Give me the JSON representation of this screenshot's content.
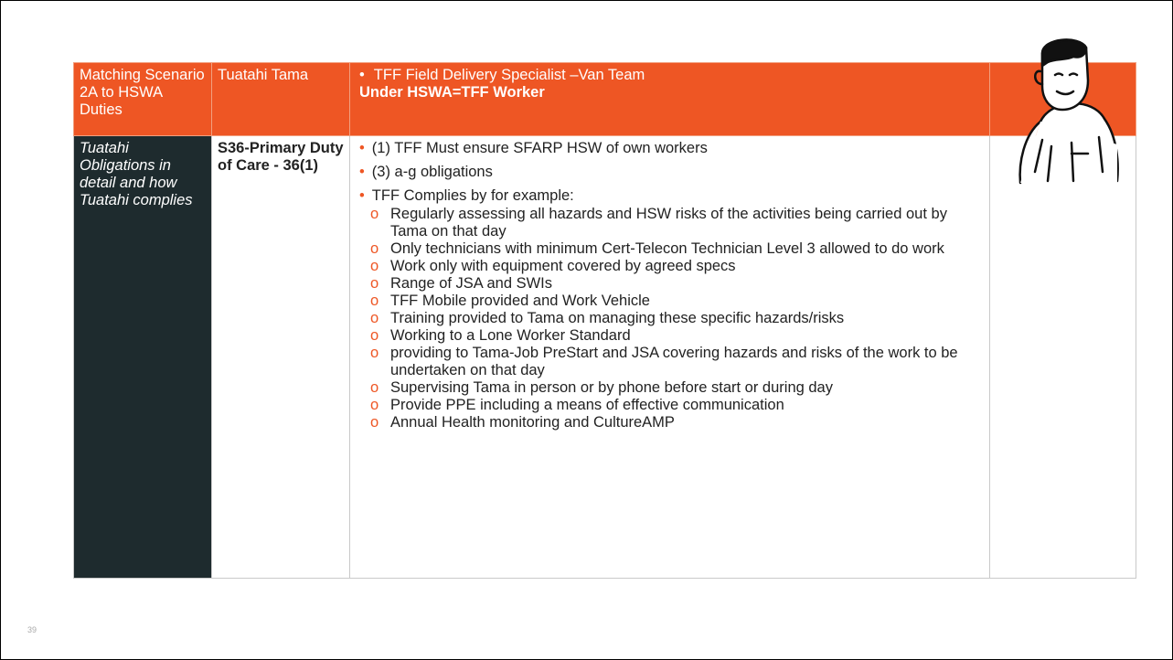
{
  "table": {
    "header": {
      "scenario": "Matching Scenario 2A  to HSWA Duties",
      "party": "Tuatahi Tama",
      "role": "TFF Field Delivery Specialist –Van Team",
      "role_status": "Under HSWA=TFF Worker"
    },
    "row": {
      "topic": "Tuatahi Obligations in detail and how Tuatahi complies",
      "duty": "S36-Primary Duty of Care - 36(1)",
      "points": [
        "(1) TFF Must ensure SFARP HSW of own workers",
        "(3) a-g obligations",
        "TFF Complies by for example:"
      ],
      "examples": [
        "Regularly assessing all hazards and HSW risks of the activities being carried out by Tama on that day",
        "Only technicians with minimum Cert-Telecon Technician Level 3 allowed to do work",
        "Work only with equipment covered by agreed specs",
        "Range of JSA and SWIs",
        "TFF Mobile provided and Work Vehicle",
        "Training provided to Tama on managing these specific hazards/risks",
        "Working to a Lone Worker Standard",
        "providing to Tama-Job PreStart and JSA covering hazards and risks of the work to be undertaken on that day",
        "Supervising Tama in person or by phone before start or during day",
        "Provide PPE including a means of effective communication",
        "Annual Health monitoring and CultureAMP"
      ]
    }
  },
  "page_number": "39"
}
